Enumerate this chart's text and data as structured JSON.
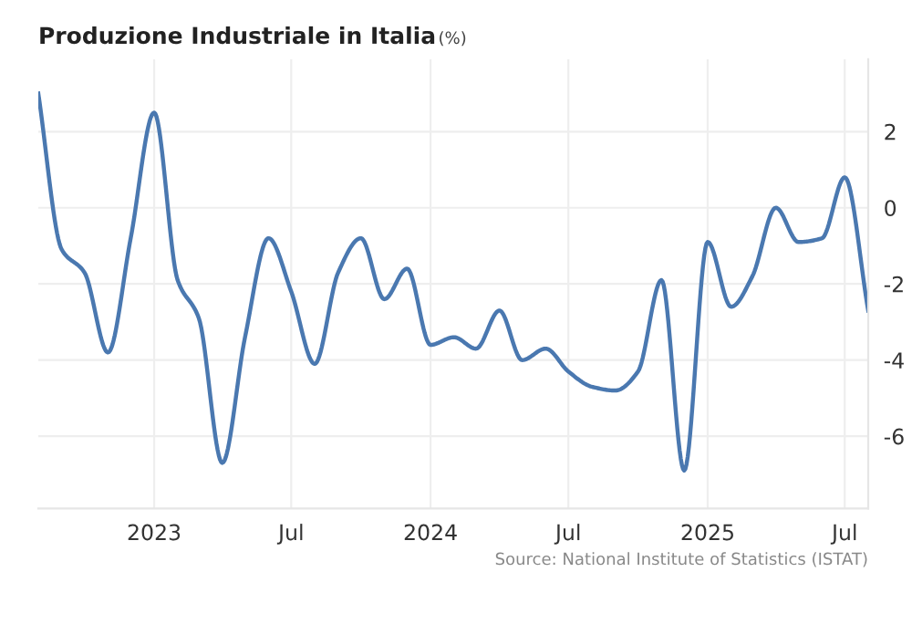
{
  "chart_data": {
    "type": "line",
    "title": "Produzione Industriale in Italia",
    "subtitle": "(%)",
    "x": [
      "2022-08",
      "2022-09",
      "2022-10",
      "2022-11",
      "2022-12",
      "2023-01",
      "2023-02",
      "2023-03",
      "2023-04",
      "2023-05",
      "2023-06",
      "2023-07",
      "2023-08",
      "2023-09",
      "2023-10",
      "2023-11",
      "2023-12",
      "2024-01",
      "2024-02",
      "2024-03",
      "2024-04",
      "2024-05",
      "2024-06",
      "2024-07",
      "2024-08",
      "2024-09",
      "2024-10",
      "2024-11",
      "2024-12",
      "2025-01",
      "2025-02",
      "2025-03",
      "2025-04",
      "2025-05",
      "2025-06",
      "2025-07",
      "2025-08"
    ],
    "series": [
      {
        "color": "#4a78b0",
        "values": [
          3.0,
          -1.1,
          -1.7,
          -3.8,
          -0.8,
          2.5,
          -1.9,
          -2.9,
          -6.7,
          -3.4,
          -0.8,
          -2.2,
          -4.1,
          -1.7,
          -0.8,
          -2.4,
          -1.6,
          -3.6,
          -3.4,
          -3.7,
          -2.7,
          -4.0,
          -3.7,
          -4.3,
          -4.7,
          -4.8,
          -4.3,
          -1.9,
          -6.9,
          -0.9,
          -2.6,
          -1.8,
          0.0,
          -0.9,
          -0.8,
          0.8,
          -2.7
        ]
      }
    ],
    "xlim": [
      "2022-08",
      "2025-08"
    ],
    "xticks": [
      {
        "value": "2023-01",
        "label": "2023"
      },
      {
        "value": "2023-07",
        "label": "Jul"
      },
      {
        "value": "2024-01",
        "label": "2024"
      },
      {
        "value": "2024-07",
        "label": "Jul"
      },
      {
        "value": "2025-01",
        "label": "2025"
      },
      {
        "value": "2025-07",
        "label": "Jul"
      }
    ],
    "ylim": [
      -7.9,
      3.9
    ],
    "yticks": [
      -6,
      -4,
      -2,
      0,
      2
    ],
    "grid": true,
    "marker": "none",
    "line_style": "solid",
    "annotations": [
      "Source: National Institute of Statistics (ISTAT)"
    ]
  }
}
